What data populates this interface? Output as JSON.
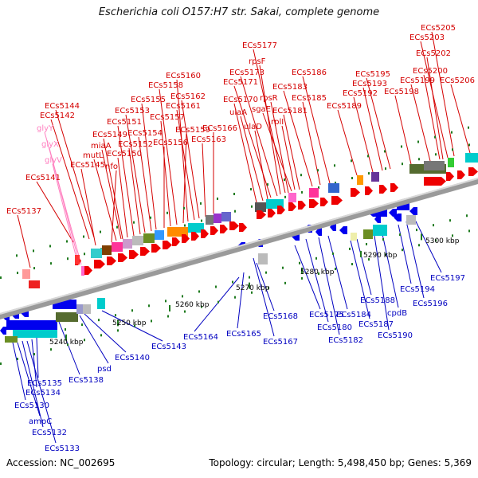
{
  "title": "Escherichia coli O157:H7 str. Sakai, complete genome",
  "footer": {
    "accession": "Accession: NC_002695",
    "summary": "Topology: circular; Length: 5,498,450 bp; Genes: 5,369"
  },
  "colors": {
    "forward_label": "#d40000",
    "reverse_label": "#0000c0",
    "rna_label": "#ff80c0",
    "backbone": "#9a9a9a",
    "tick": "#1e7a1e"
  },
  "scale_labels": [
    "5240 kbp",
    "5250 kbp",
    "5260 kbp",
    "5270 kbp",
    "5280 kbp",
    "5290 kbp",
    "5300 kbp"
  ],
  "forward_genes": [
    "ECs5137",
    "ECs5141",
    "ECs5142",
    "ECs5144",
    "ECs5145",
    "nfo",
    "mutL",
    "ECs5149",
    "miaA",
    "ECs5150",
    "ECs5151",
    "ECs5152",
    "ECs5153",
    "ECs5154",
    "ECs5155",
    "ECs5156",
    "ECs5157",
    "ECs5158",
    "ECs5159",
    "ECs5160",
    "ECs5161",
    "ECs5162",
    "ECs5163",
    "ECs5166",
    "ECs5170",
    "ulaA",
    "ulaD",
    "ECs5171",
    "ECs5173",
    "rpsF",
    "ECs5177",
    "rpsR",
    "sgaE",
    "rplI",
    "ECs5181",
    "ECs5183",
    "ECs5185",
    "ECs5186",
    "ECs5189",
    "ECs5192",
    "ECs5193",
    "ECs5195",
    "ECs5198",
    "ECs5199",
    "ECs5200",
    "ECs5202",
    "ECs5203",
    "ECs5205",
    "ECs5206"
  ],
  "reverse_genes": [
    "ECs5130",
    "ampC",
    "ECs5132",
    "ECs5133",
    "ECs5134",
    "ECs5135",
    "ECs5138",
    "psd",
    "ECs5140",
    "ECs5143",
    "ECs5164",
    "ECs5165",
    "ECs5167",
    "ECs5168",
    "ECs5175",
    "ECs5180",
    "ECs5182",
    "ECs5184",
    "ECs5187",
    "ECs5188",
    "ECs5190",
    "cpdB",
    "ECs5194",
    "ECs5196",
    "ECs5197"
  ],
  "rna_genes": [
    "glyY",
    "glyX",
    "glyV"
  ]
}
